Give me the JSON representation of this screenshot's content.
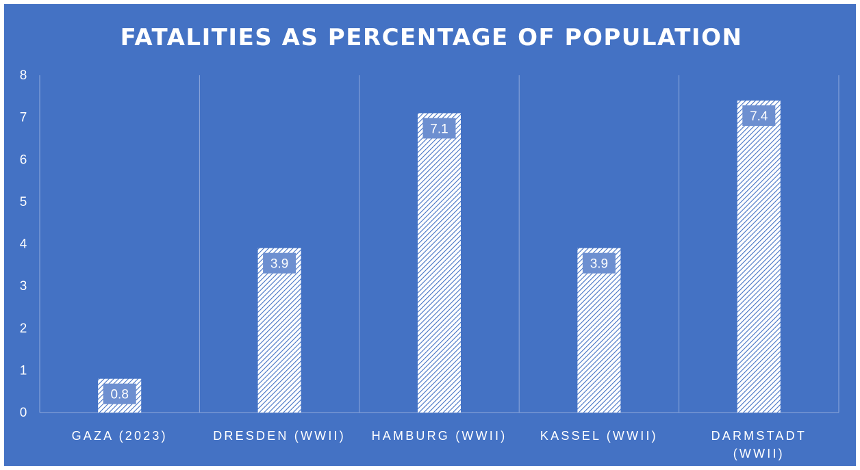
{
  "chart_data": {
    "type": "bar",
    "title": "FATALITIES AS PERCENTAGE OF POPULATION",
    "categories": [
      [
        "GAZA (2023)"
      ],
      [
        "DRESDEN (WWII)"
      ],
      [
        "HAMBURG (WWII)"
      ],
      [
        "KASSEL (WWII)"
      ],
      [
        "DARMSTADT",
        "(WWII)"
      ]
    ],
    "values": [
      0.8,
      3.9,
      7.1,
      3.9,
      7.4
    ],
    "data_labels": [
      "0.8",
      "3.9",
      "7.1",
      "3.9",
      "7.4"
    ],
    "ylim": [
      0,
      8
    ],
    "y_ticks": [
      "0",
      "1",
      "2",
      "3",
      "4",
      "5",
      "6",
      "7",
      "8"
    ],
    "xlabel": "",
    "ylabel": "",
    "grid": "vertical category separators",
    "legend": "none",
    "colors": {
      "background": "#4472c4",
      "bar_fill": "hatched white diagonal",
      "label_box": "#6d8fd0",
      "grid": "#8fa9dc",
      "text": "#ffffff"
    }
  }
}
